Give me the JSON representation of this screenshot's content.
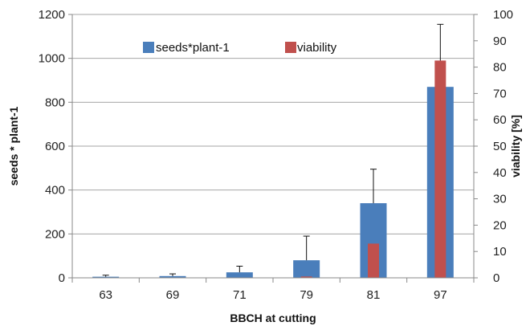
{
  "chart_data": {
    "type": "bar",
    "xlabel": "BBCH at cutting",
    "ylabel_left": "seeds * plant-1",
    "ylabel_right": "viability [%]",
    "categories": [
      "63",
      "69",
      "71",
      "79",
      "81",
      "97"
    ],
    "ylim_left": [
      0,
      1200
    ],
    "yticks_left": [
      0,
      200,
      400,
      600,
      800,
      1000,
      1200
    ],
    "ylim_right": [
      0,
      100
    ],
    "yticks_right": [
      0,
      10,
      20,
      30,
      40,
      50,
      60,
      70,
      80,
      90,
      100
    ],
    "grid": "horizontal",
    "legend_position": "top-center",
    "series": [
      {
        "name": "seeds*plant-1",
        "axis": "left",
        "color": "#4a7ebb",
        "values": [
          5,
          8,
          25,
          80,
          340,
          870
        ],
        "error_plus": [
          7,
          10,
          28,
          110,
          155,
          285
        ]
      },
      {
        "name": "viability",
        "axis": "right",
        "color": "#c0504d",
        "values": [
          0,
          0,
          0,
          0.5,
          13,
          82.5
        ]
      }
    ]
  }
}
